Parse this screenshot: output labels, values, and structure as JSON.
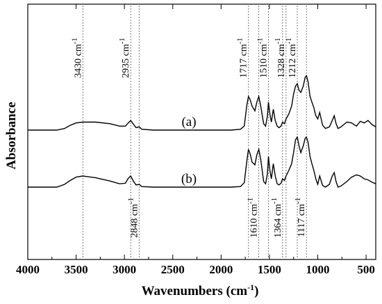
{
  "chart_data": {
    "type": "line",
    "title": "",
    "xlabel": "Wavenumbers (cm",
    "xlabel_sup": "-1",
    "xlabel_close": ")",
    "ylabel": "Absorbance",
    "xlim": [
      4000,
      400
    ],
    "x_reversed": true,
    "y_ticks_shown": false,
    "x_ticks": [
      4000,
      3500,
      3000,
      2500,
      2000,
      1500,
      1000,
      500
    ],
    "x_tick_labels": [
      "4000",
      "3500",
      "3000",
      "2500",
      "2000",
      "1500",
      "1000",
      "500"
    ],
    "grid": false,
    "series": [
      {
        "name": "(a)",
        "x": [
          4000,
          3700,
          3620,
          3560,
          3500,
          3430,
          3300,
          3150,
          3050,
          2990,
          2960,
          2935,
          2905,
          2880,
          2848,
          2820,
          2700,
          2500,
          2200,
          1900,
          1800,
          1760,
          1735,
          1717,
          1700,
          1680,
          1650,
          1630,
          1610,
          1590,
          1560,
          1540,
          1520,
          1510,
          1495,
          1480,
          1460,
          1440,
          1420,
          1400,
          1380,
          1364,
          1345,
          1328,
          1300,
          1270,
          1250,
          1230,
          1212,
          1195,
          1175,
          1150,
          1130,
          1117,
          1100,
          1080,
          1060,
          1040,
          1020,
          1000,
          980,
          950,
          920,
          880,
          850,
          830,
          810,
          790,
          760,
          700,
          650,
          600,
          560,
          520,
          480,
          440,
          400
        ],
        "y": [
          0.0,
          0.0,
          0.02,
          0.06,
          0.09,
          0.1,
          0.1,
          0.08,
          0.05,
          0.05,
          0.09,
          0.12,
          0.07,
          0.03,
          0.04,
          0.01,
          0.0,
          0.0,
          0.0,
          0.0,
          0.01,
          0.05,
          0.3,
          0.42,
          0.38,
          0.3,
          0.24,
          0.35,
          0.42,
          0.3,
          0.08,
          0.05,
          0.18,
          0.35,
          0.2,
          0.1,
          0.26,
          0.12,
          0.05,
          0.03,
          0.05,
          0.1,
          0.08,
          0.14,
          0.2,
          0.3,
          0.45,
          0.55,
          0.58,
          0.5,
          0.47,
          0.55,
          0.66,
          0.68,
          0.6,
          0.42,
          0.35,
          0.28,
          0.18,
          0.14,
          0.22,
          0.06,
          0.02,
          0.04,
          0.12,
          0.18,
          0.08,
          0.02,
          0.04,
          0.1,
          0.09,
          0.05,
          0.11,
          0.09,
          0.12,
          0.07,
          0.04
        ]
      },
      {
        "name": "(b)",
        "x": [
          4000,
          3700,
          3620,
          3560,
          3500,
          3430,
          3300,
          3150,
          3050,
          2990,
          2960,
          2935,
          2905,
          2880,
          2848,
          2820,
          2700,
          2500,
          2200,
          1900,
          1800,
          1760,
          1735,
          1717,
          1700,
          1680,
          1650,
          1630,
          1610,
          1590,
          1560,
          1540,
          1520,
          1510,
          1495,
          1480,
          1460,
          1440,
          1420,
          1400,
          1380,
          1364,
          1345,
          1328,
          1300,
          1270,
          1250,
          1230,
          1212,
          1195,
          1175,
          1150,
          1130,
          1117,
          1100,
          1080,
          1060,
          1040,
          1020,
          1000,
          980,
          950,
          920,
          880,
          850,
          830,
          810,
          790,
          760,
          700,
          650,
          600,
          560,
          520,
          480,
          440,
          400
        ],
        "y": [
          0.0,
          0.0,
          0.05,
          0.12,
          0.18,
          0.2,
          0.17,
          0.11,
          0.06,
          0.07,
          0.16,
          0.2,
          0.1,
          0.04,
          0.05,
          0.01,
          0.0,
          0.0,
          0.0,
          0.0,
          0.01,
          0.08,
          0.45,
          0.68,
          0.6,
          0.45,
          0.4,
          0.58,
          0.68,
          0.5,
          0.1,
          0.06,
          0.25,
          0.55,
          0.3,
          0.15,
          0.42,
          0.2,
          0.06,
          0.04,
          0.07,
          0.15,
          0.12,
          0.2,
          0.3,
          0.42,
          0.62,
          0.85,
          0.9,
          0.75,
          0.62,
          0.74,
          0.88,
          0.9,
          0.8,
          0.55,
          0.42,
          0.3,
          0.15,
          0.05,
          0.2,
          0.03,
          0.0,
          0.05,
          0.2,
          0.26,
          0.1,
          0.0,
          0.02,
          0.1,
          0.18,
          0.22,
          0.2,
          0.15,
          0.13,
          0.09,
          0.06
        ]
      }
    ],
    "annotations": [
      {
        "label": "3430 cm",
        "x": 3430,
        "side": "top"
      },
      {
        "label": "2935 cm",
        "x": 2935,
        "side": "top"
      },
      {
        "label": "2848 cm",
        "x": 2848,
        "side": "bottom"
      },
      {
        "label": "1717 cm",
        "x": 1717,
        "side": "top"
      },
      {
        "label": "1610 cm",
        "x": 1610,
        "side": "bottom"
      },
      {
        "label": "1510 cm",
        "x": 1510,
        "side": "top"
      },
      {
        "label": "1364 cm",
        "x": 1364,
        "side": "bottom"
      },
      {
        "label": "1328 cm",
        "x": 1328,
        "side": "top"
      },
      {
        "label": "1212 cm",
        "x": 1212,
        "side": "top"
      },
      {
        "label": "1117 cm",
        "x": 1117,
        "side": "bottom"
      }
    ],
    "annotation_sup": "-1"
  }
}
